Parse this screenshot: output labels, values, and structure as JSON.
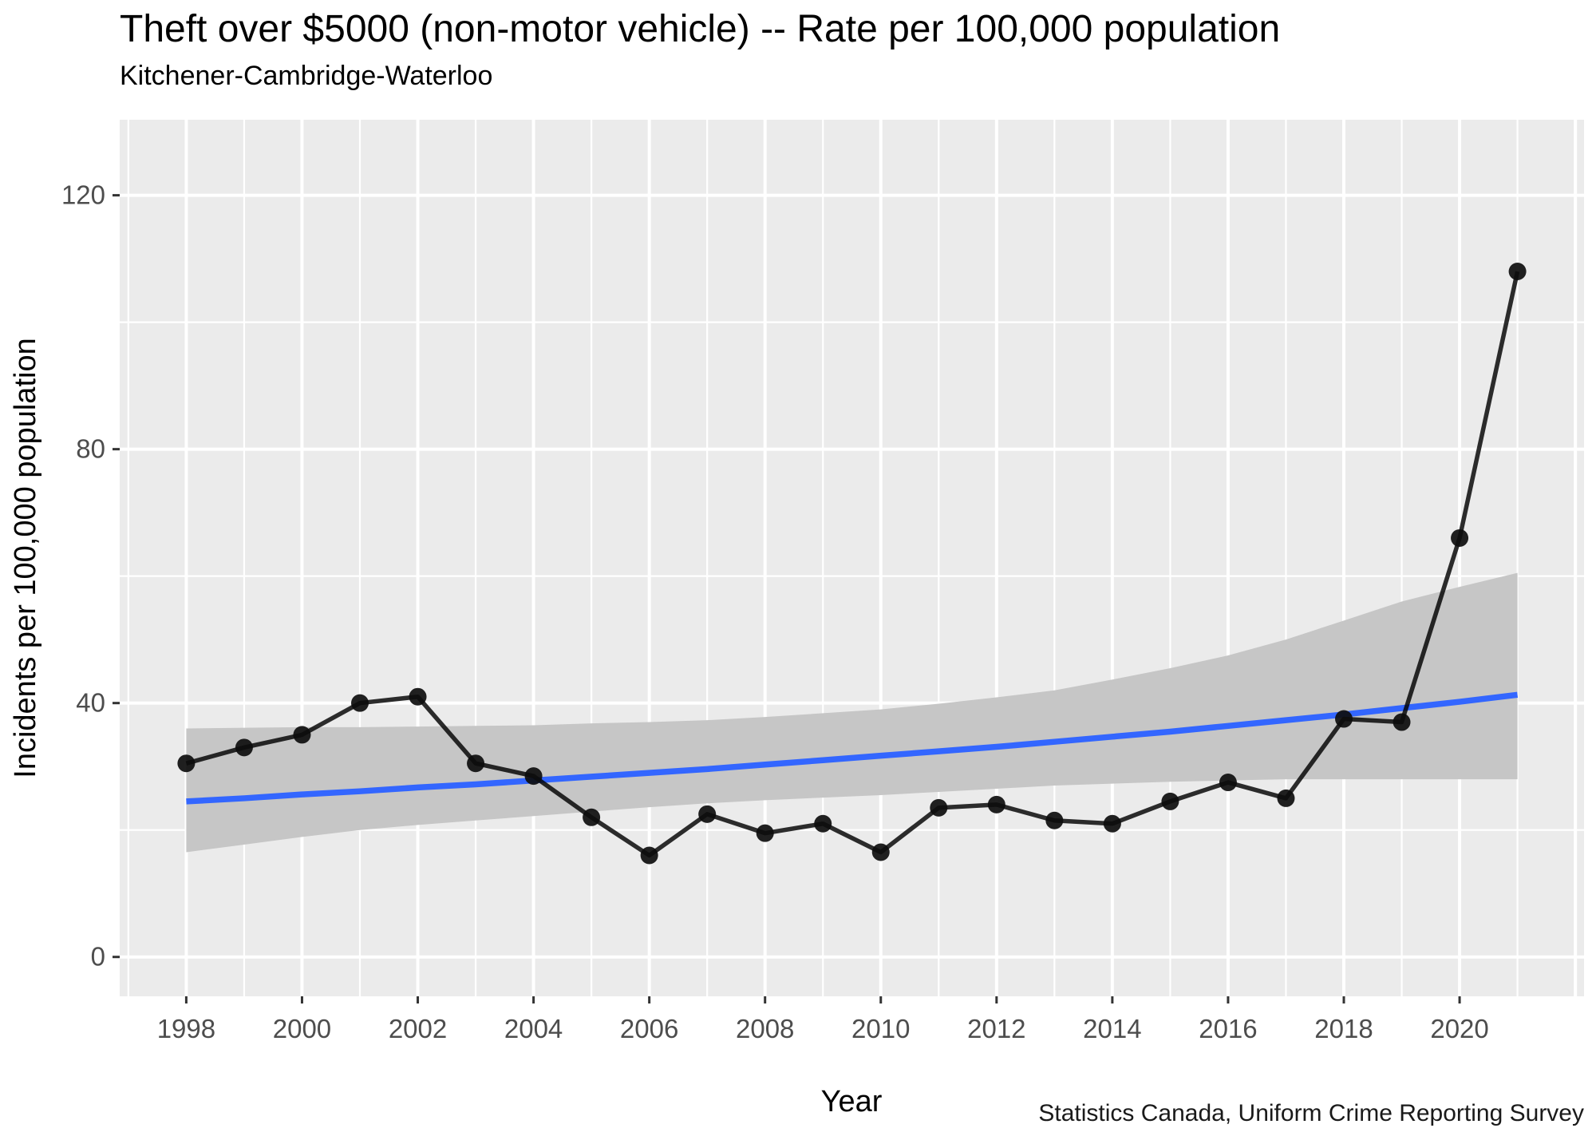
{
  "header": {
    "title": "Theft over $5000 (non-motor vehicle) -- Rate per 100,000 population",
    "subtitle": "Kitchener-Cambridge-Waterloo"
  },
  "caption": "Statistics Canada, Uniform Crime Reporting Survey",
  "chart_data": {
    "type": "line",
    "title": "Theft over $5000 (non-motor vehicle) -- Rate per 100,000 population",
    "subtitle": "Kitchener-Cambridge-Waterloo",
    "xlabel": "Year",
    "ylabel": "Incidents per 100,000 population",
    "x": [
      1998,
      1999,
      2000,
      2001,
      2002,
      2003,
      2004,
      2005,
      2006,
      2007,
      2008,
      2009,
      2010,
      2011,
      2012,
      2013,
      2014,
      2015,
      2016,
      2017,
      2018,
      2019,
      2020,
      2021
    ],
    "series": [
      {
        "name": "incidents_rate",
        "style": "points-and-line",
        "values": [
          30.5,
          33,
          35,
          40,
          41,
          30.5,
          28.5,
          22,
          16,
          22.5,
          19.5,
          21,
          16.5,
          23.5,
          24,
          21.5,
          21,
          24.5,
          27.5,
          25,
          37.5,
          37,
          66,
          108
        ]
      },
      {
        "name": "trend_smooth",
        "style": "smooth-line",
        "values": [
          24.5,
          25.0,
          25.6,
          26.1,
          26.7,
          27.2,
          27.8,
          28.4,
          29.0,
          29.6,
          30.3,
          31.0,
          31.7,
          32.4,
          33.1,
          33.9,
          34.7,
          35.5,
          36.4,
          37.3,
          38.2,
          39.2,
          40.2,
          41.3
        ]
      }
    ],
    "ribbon": {
      "name": "confidence_band",
      "upper": [
        36.0,
        36.1,
        36.2,
        36.2,
        36.3,
        36.4,
        36.5,
        36.8,
        37.0,
        37.3,
        37.8,
        38.4,
        39.0,
        39.9,
        40.9,
        42.0,
        43.7,
        45.5,
        47.5,
        50.0,
        53.0,
        56.0,
        58.3,
        60.5
      ],
      "lower": [
        16.5,
        17.7,
        18.9,
        20.0,
        20.8,
        21.5,
        22.2,
        22.9,
        23.6,
        24.2,
        24.7,
        25.1,
        25.5,
        26.0,
        26.5,
        27.0,
        27.3,
        27.6,
        27.8,
        28.0,
        28.0,
        28.0,
        28.0,
        28.0
      ]
    },
    "x_ticks": [
      1998,
      2000,
      2002,
      2004,
      2006,
      2008,
      2010,
      2012,
      2014,
      2016,
      2018,
      2020
    ],
    "x_grid_major": [
      1998,
      2000,
      2002,
      2004,
      2006,
      2008,
      2010,
      2012,
      2014,
      2016,
      2018,
      2020,
      2022
    ],
    "x_grid_minor": [
      1997,
      1999,
      2001,
      2003,
      2005,
      2007,
      2009,
      2011,
      2013,
      2015,
      2017,
      2019,
      2021
    ],
    "y_ticks": [
      0,
      40,
      80,
      120
    ],
    "y_grid_minor": [
      20,
      60,
      100
    ],
    "xlim": [
      1996.85,
      2022.15
    ],
    "ylim": [
      -6.2,
      131.9
    ],
    "grid": true,
    "legend": "none",
    "colors": {
      "panel_bg": "#EBEBEB",
      "gridline": "#FFFFFF",
      "ribbon": "#C6C6C6",
      "trend": "#3366FF",
      "line": "#000000",
      "point": "#0D0D0D",
      "tick_mark": "#333333",
      "tick_label": "#4D4D4D"
    }
  }
}
